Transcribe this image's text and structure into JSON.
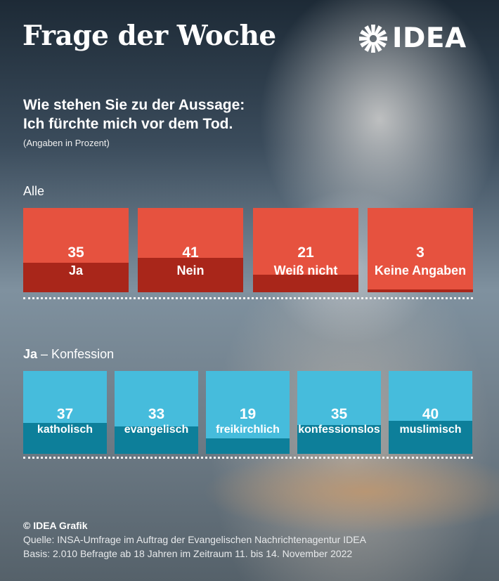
{
  "header": {
    "title": "Frage der Woche",
    "logo_text": "IDEA"
  },
  "question": {
    "line1": "Wie stehen Sie zu der Aussage:",
    "line2": "Ich fürchte mich vor dem Tod.",
    "note": "(Angaben in Prozent)"
  },
  "colors": {
    "red_box": "#e6523f",
    "red_fill": "#a9261a",
    "blue_box": "#46bcdc",
    "blue_fill": "#0d7f9a"
  },
  "chart_data": [
    {
      "type": "bar",
      "title": "Alle",
      "categories": [
        "Ja",
        "Nein",
        "Weiß nicht",
        "Keine Angaben"
      ],
      "values": [
        35,
        41,
        21,
        3
      ],
      "ylim": [
        0,
        100
      ]
    },
    {
      "type": "bar",
      "title_bold": "Ja",
      "title_rest": "– Konfession",
      "categories": [
        "katholisch",
        "evangelisch",
        "freikirchlich",
        "konfessionslos",
        "muslimisch"
      ],
      "values": [
        37,
        33,
        19,
        35,
        40
      ],
      "ylim": [
        0,
        100
      ]
    }
  ],
  "footer": {
    "copyright": "© IDEA Grafik",
    "source": "Quelle: INSA-Umfrage im Auftrag der Evangelischen Nachrichtenagentur IDEA",
    "basis": "Basis: 2.010 Befragte ab 18 Jahren im Zeitraum 11. bis 14. November 2022"
  }
}
